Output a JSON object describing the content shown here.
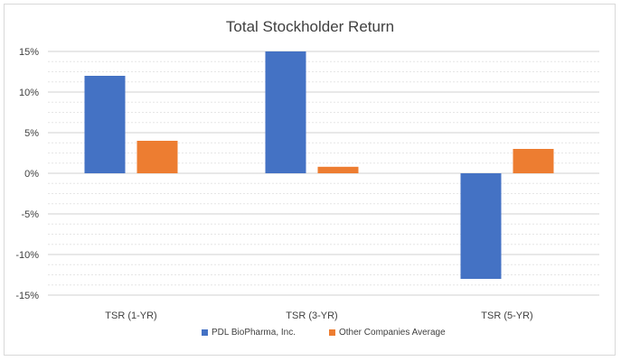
{
  "chart_data": {
    "type": "bar",
    "title": "Total Stockholder Return",
    "categories": [
      "TSR (1-YR)",
      "TSR (3-YR)",
      "TSR (5-YR)"
    ],
    "series": [
      {
        "name": "PDL BioPharma, Inc.",
        "color": "#4472C4",
        "values": [
          12,
          15,
          -13
        ]
      },
      {
        "name": "Other Companies Average",
        "color": "#ED7D31",
        "values": [
          4,
          0.8,
          3
        ]
      }
    ],
    "y_ticks": [
      15,
      10,
      5,
      0,
      -5,
      -10,
      -15
    ],
    "y_tick_labels": [
      "15%",
      "10%",
      "5%",
      "0%",
      "-5%",
      "-10%",
      "-15%"
    ],
    "ylim": [
      -15,
      15
    ],
    "xlabel": "",
    "ylabel": "",
    "legend_position": "bottom",
    "grid": true
  }
}
